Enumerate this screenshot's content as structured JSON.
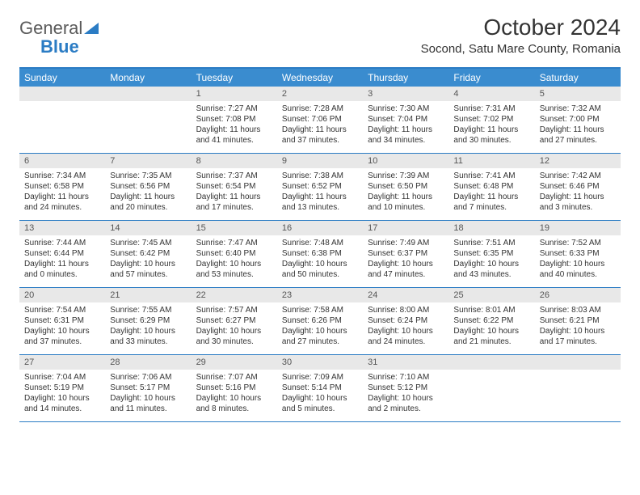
{
  "logo": {
    "text1": "General",
    "text2": "Blue"
  },
  "title": "October 2024",
  "location": "Socond, Satu Mare County, Romania",
  "weekdays": [
    "Sunday",
    "Monday",
    "Tuesday",
    "Wednesday",
    "Thursday",
    "Friday",
    "Saturday"
  ],
  "colors": {
    "header_bar": "#3a8ccf",
    "border": "#2b7cc4",
    "day_num_bg": "#e8e8e8",
    "logo_blue": "#2b7cc4",
    "text": "#333333"
  },
  "weeks": [
    [
      {
        "n": "",
        "sr": "",
        "ss": "",
        "dl": ""
      },
      {
        "n": "",
        "sr": "",
        "ss": "",
        "dl": ""
      },
      {
        "n": "1",
        "sr": "Sunrise: 7:27 AM",
        "ss": "Sunset: 7:08 PM",
        "dl": "Daylight: 11 hours and 41 minutes."
      },
      {
        "n": "2",
        "sr": "Sunrise: 7:28 AM",
        "ss": "Sunset: 7:06 PM",
        "dl": "Daylight: 11 hours and 37 minutes."
      },
      {
        "n": "3",
        "sr": "Sunrise: 7:30 AM",
        "ss": "Sunset: 7:04 PM",
        "dl": "Daylight: 11 hours and 34 minutes."
      },
      {
        "n": "4",
        "sr": "Sunrise: 7:31 AM",
        "ss": "Sunset: 7:02 PM",
        "dl": "Daylight: 11 hours and 30 minutes."
      },
      {
        "n": "5",
        "sr": "Sunrise: 7:32 AM",
        "ss": "Sunset: 7:00 PM",
        "dl": "Daylight: 11 hours and 27 minutes."
      }
    ],
    [
      {
        "n": "6",
        "sr": "Sunrise: 7:34 AM",
        "ss": "Sunset: 6:58 PM",
        "dl": "Daylight: 11 hours and 24 minutes."
      },
      {
        "n": "7",
        "sr": "Sunrise: 7:35 AM",
        "ss": "Sunset: 6:56 PM",
        "dl": "Daylight: 11 hours and 20 minutes."
      },
      {
        "n": "8",
        "sr": "Sunrise: 7:37 AM",
        "ss": "Sunset: 6:54 PM",
        "dl": "Daylight: 11 hours and 17 minutes."
      },
      {
        "n": "9",
        "sr": "Sunrise: 7:38 AM",
        "ss": "Sunset: 6:52 PM",
        "dl": "Daylight: 11 hours and 13 minutes."
      },
      {
        "n": "10",
        "sr": "Sunrise: 7:39 AM",
        "ss": "Sunset: 6:50 PM",
        "dl": "Daylight: 11 hours and 10 minutes."
      },
      {
        "n": "11",
        "sr": "Sunrise: 7:41 AM",
        "ss": "Sunset: 6:48 PM",
        "dl": "Daylight: 11 hours and 7 minutes."
      },
      {
        "n": "12",
        "sr": "Sunrise: 7:42 AM",
        "ss": "Sunset: 6:46 PM",
        "dl": "Daylight: 11 hours and 3 minutes."
      }
    ],
    [
      {
        "n": "13",
        "sr": "Sunrise: 7:44 AM",
        "ss": "Sunset: 6:44 PM",
        "dl": "Daylight: 11 hours and 0 minutes."
      },
      {
        "n": "14",
        "sr": "Sunrise: 7:45 AM",
        "ss": "Sunset: 6:42 PM",
        "dl": "Daylight: 10 hours and 57 minutes."
      },
      {
        "n": "15",
        "sr": "Sunrise: 7:47 AM",
        "ss": "Sunset: 6:40 PM",
        "dl": "Daylight: 10 hours and 53 minutes."
      },
      {
        "n": "16",
        "sr": "Sunrise: 7:48 AM",
        "ss": "Sunset: 6:38 PM",
        "dl": "Daylight: 10 hours and 50 minutes."
      },
      {
        "n": "17",
        "sr": "Sunrise: 7:49 AM",
        "ss": "Sunset: 6:37 PM",
        "dl": "Daylight: 10 hours and 47 minutes."
      },
      {
        "n": "18",
        "sr": "Sunrise: 7:51 AM",
        "ss": "Sunset: 6:35 PM",
        "dl": "Daylight: 10 hours and 43 minutes."
      },
      {
        "n": "19",
        "sr": "Sunrise: 7:52 AM",
        "ss": "Sunset: 6:33 PM",
        "dl": "Daylight: 10 hours and 40 minutes."
      }
    ],
    [
      {
        "n": "20",
        "sr": "Sunrise: 7:54 AM",
        "ss": "Sunset: 6:31 PM",
        "dl": "Daylight: 10 hours and 37 minutes."
      },
      {
        "n": "21",
        "sr": "Sunrise: 7:55 AM",
        "ss": "Sunset: 6:29 PM",
        "dl": "Daylight: 10 hours and 33 minutes."
      },
      {
        "n": "22",
        "sr": "Sunrise: 7:57 AM",
        "ss": "Sunset: 6:27 PM",
        "dl": "Daylight: 10 hours and 30 minutes."
      },
      {
        "n": "23",
        "sr": "Sunrise: 7:58 AM",
        "ss": "Sunset: 6:26 PM",
        "dl": "Daylight: 10 hours and 27 minutes."
      },
      {
        "n": "24",
        "sr": "Sunrise: 8:00 AM",
        "ss": "Sunset: 6:24 PM",
        "dl": "Daylight: 10 hours and 24 minutes."
      },
      {
        "n": "25",
        "sr": "Sunrise: 8:01 AM",
        "ss": "Sunset: 6:22 PM",
        "dl": "Daylight: 10 hours and 21 minutes."
      },
      {
        "n": "26",
        "sr": "Sunrise: 8:03 AM",
        "ss": "Sunset: 6:21 PM",
        "dl": "Daylight: 10 hours and 17 minutes."
      }
    ],
    [
      {
        "n": "27",
        "sr": "Sunrise: 7:04 AM",
        "ss": "Sunset: 5:19 PM",
        "dl": "Daylight: 10 hours and 14 minutes."
      },
      {
        "n": "28",
        "sr": "Sunrise: 7:06 AM",
        "ss": "Sunset: 5:17 PM",
        "dl": "Daylight: 10 hours and 11 minutes."
      },
      {
        "n": "29",
        "sr": "Sunrise: 7:07 AM",
        "ss": "Sunset: 5:16 PM",
        "dl": "Daylight: 10 hours and 8 minutes."
      },
      {
        "n": "30",
        "sr": "Sunrise: 7:09 AM",
        "ss": "Sunset: 5:14 PM",
        "dl": "Daylight: 10 hours and 5 minutes."
      },
      {
        "n": "31",
        "sr": "Sunrise: 7:10 AM",
        "ss": "Sunset: 5:12 PM",
        "dl": "Daylight: 10 hours and 2 minutes."
      },
      {
        "n": "",
        "sr": "",
        "ss": "",
        "dl": ""
      },
      {
        "n": "",
        "sr": "",
        "ss": "",
        "dl": ""
      }
    ]
  ]
}
